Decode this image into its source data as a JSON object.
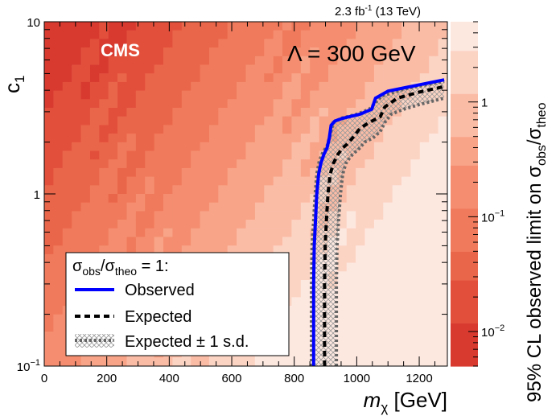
{
  "chart_data": {
    "type": "heatmap",
    "experiment_label": "CMS",
    "luminosity": {
      "value": "2.3",
      "unit": "fb",
      "unit_exponent": "-1",
      "energy": "(13 TeV)"
    },
    "model_label": "Λ = 300 GeV",
    "xlabel": {
      "symbol": "m",
      "subscript": "χ",
      "unit": "[GeV]"
    },
    "ylabel": {
      "symbol": "c",
      "subscript": "1"
    },
    "zlabel": {
      "text": "95% CL observed limit on σ",
      "sub1": "obs",
      "sep": "/σ",
      "sub2": "theo"
    },
    "xlim": [
      0,
      1290
    ],
    "ylim": [
      0.1,
      10
    ],
    "yscale": "log",
    "zscale": "log",
    "zlim": [
      0.005,
      5
    ],
    "x_ticks": [
      {
        "value": 0,
        "label": "0"
      },
      {
        "value": 200,
        "label": "200"
      },
      {
        "value": 400,
        "label": "400"
      },
      {
        "value": 600,
        "label": "600"
      },
      {
        "value": 800,
        "label": "800"
      },
      {
        "value": 1000,
        "label": "1000"
      },
      {
        "value": 1200,
        "label": "1200"
      }
    ],
    "y_ticks": [
      {
        "value": 0.1,
        "base": "10",
        "exp": "−1"
      },
      {
        "value": 1,
        "label": "1"
      },
      {
        "value": 10,
        "label": "10"
      }
    ],
    "z_ticks": [
      {
        "value": 1,
        "label": "1"
      },
      {
        "value": 0.1,
        "base": "10",
        "exp": "−1"
      },
      {
        "value": 0.01,
        "base": "10",
        "exp": "−2"
      }
    ],
    "legend": {
      "title": {
        "sym": "σ",
        "sub1": "obs",
        "sep": "/σ",
        "sub2": "theo",
        "tail": " = 1:"
      },
      "entries": [
        {
          "label": "Observed",
          "style": "solid",
          "color": "#0000ff"
        },
        {
          "label": "Expected",
          "style": "dashed",
          "color": "#000000"
        },
        {
          "label": "Expected ± 1 s.d.",
          "style": "band",
          "color": "#666666"
        }
      ],
      "placement": "bottom-left"
    },
    "series": [
      {
        "name": "Observed",
        "color": "#0000ff",
        "x": [
          862,
          862,
          864,
          868,
          872,
          878,
          885,
          895,
          905,
          912,
          918,
          930,
          955,
          1010,
          1048,
          1060,
          1100,
          1200,
          1280
        ],
        "y": [
          0.1,
          0.3,
          0.5,
          0.7,
          1.0,
          1.3,
          1.5,
          1.7,
          1.85,
          2.1,
          2.5,
          2.65,
          2.75,
          2.9,
          3.1,
          3.6,
          3.95,
          4.3,
          4.6
        ]
      },
      {
        "name": "Expected",
        "color": "#000000",
        "x": [
          897,
          897,
          899,
          903,
          908,
          915,
          925,
          940,
          955,
          970,
          990,
          1010,
          1040,
          1075,
          1090,
          1130,
          1200,
          1280
        ],
        "y": [
          0.1,
          0.3,
          0.5,
          0.7,
          1.0,
          1.3,
          1.5,
          1.7,
          1.85,
          1.95,
          2.15,
          2.4,
          2.6,
          2.8,
          3.2,
          3.6,
          3.9,
          4.2
        ]
      },
      {
        "name": "Expected +1 s.d.",
        "color": "#666666",
        "x": [
          855,
          855,
          857,
          862,
          867,
          872,
          880,
          892,
          905,
          915,
          925,
          950,
          1000,
          1040,
          1080,
          1160,
          1280
        ],
        "y": [
          0.1,
          0.3,
          0.5,
          0.7,
          1.0,
          1.3,
          1.55,
          1.75,
          1.9,
          2.2,
          2.6,
          2.75,
          2.9,
          3.1,
          3.7,
          4.1,
          4.5
        ]
      },
      {
        "name": "Expected −1 s.d.",
        "color": "#666666",
        "x": [
          935,
          935,
          937,
          942,
          948,
          955,
          965,
          980,
          995,
          1010,
          1025,
          1050,
          1075,
          1090,
          1110,
          1150,
          1200,
          1280
        ],
        "y": [
          0.1,
          0.3,
          0.5,
          0.7,
          1.0,
          1.3,
          1.5,
          1.65,
          1.75,
          1.85,
          2.0,
          2.1,
          2.3,
          2.6,
          2.9,
          3.1,
          3.3,
          3.6
        ]
      }
    ],
    "heatmap_colors": [
      "#fde8e0",
      "#fcd4c4",
      "#fbbca6",
      "#f8a488",
      "#f58e70",
      "#f07a5c",
      "#ea664a",
      "#e2503c",
      "#d83a30"
    ]
  }
}
